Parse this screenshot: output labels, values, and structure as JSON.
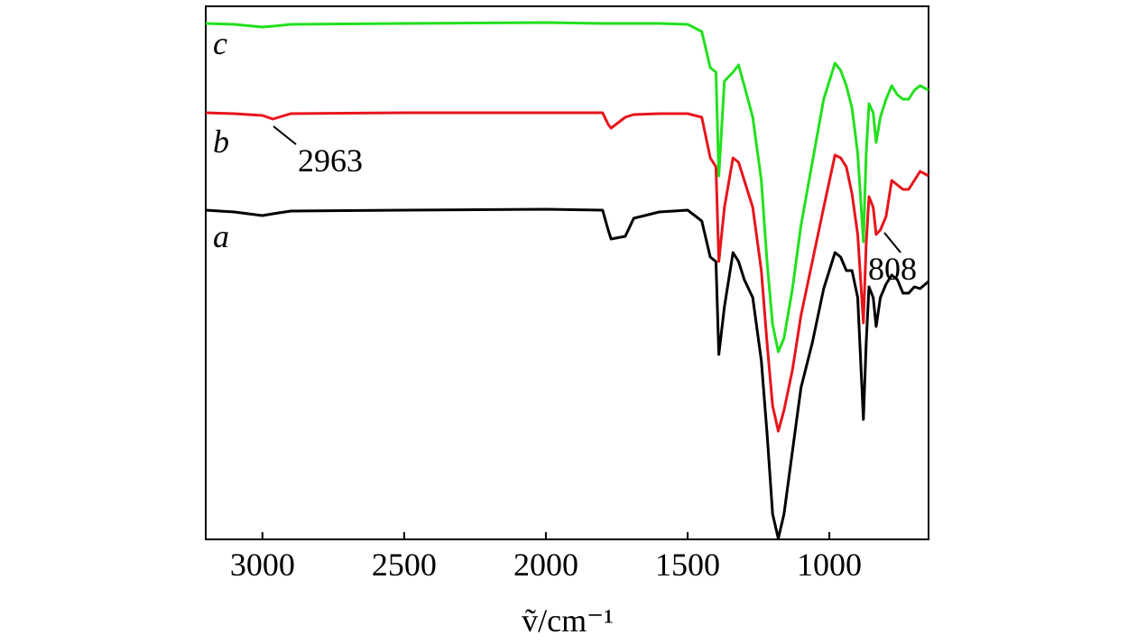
{
  "chart_data": {
    "type": "line",
    "x_label": "ṽ/cm⁻¹",
    "x": [
      3200,
      3100,
      3000,
      2963,
      2900,
      2500,
      2000,
      1800,
      1780,
      1770,
      1720,
      1690,
      1600,
      1500,
      1450,
      1420,
      1400,
      1390,
      1370,
      1340,
      1320,
      1300,
      1270,
      1240,
      1220,
      1200,
      1180,
      1160,
      1130,
      1100,
      1060,
      1020,
      980,
      960,
      940,
      920,
      900,
      880,
      870,
      860,
      845,
      835,
      820,
      800,
      780,
      760,
      740,
      720,
      700,
      680,
      650
    ],
    "series": [
      {
        "name": "a",
        "color": "#000000",
        "values": [
          365,
          363,
          359,
          361,
          364,
          365,
          366,
          365,
          343,
          333,
          336,
          356,
          363,
          365,
          353,
          313,
          308,
          205,
          258,
          318,
          308,
          288,
          268,
          198,
          118,
          28,
          1,
          28,
          98,
          168,
          218,
          278,
          318,
          313,
          298,
          298,
          268,
          133,
          218,
          280,
          268,
          236,
          268,
          283,
          293,
          288,
          273,
          273,
          280,
          278,
          286
        ]
      },
      {
        "name": "b",
        "color": "#e8141b",
        "values": [
          473,
          472,
          470,
          466,
          472,
          473,
          473,
          473,
          460,
          456,
          468,
          471,
          472,
          472,
          468,
          423,
          413,
          308,
          368,
          423,
          418,
          398,
          368,
          298,
          218,
          148,
          120,
          143,
          188,
          248,
          308,
          368,
          426,
          423,
          413,
          383,
          338,
          240,
          328,
          380,
          368,
          338,
          343,
          358,
          398,
          393,
          388,
          388,
          398,
          408,
          403
        ]
      },
      {
        "name": "c",
        "color": "#22e01e",
        "values": [
          572,
          571,
          568,
          569,
          571,
          572,
          573,
          572,
          572,
          572,
          572,
          572,
          572,
          571,
          563,
          523,
          518,
          403,
          508,
          518,
          526,
          503,
          468,
          398,
          308,
          238,
          208,
          223,
          278,
          348,
          418,
          488,
          528,
          520,
          503,
          478,
          428,
          330,
          428,
          483,
          473,
          440,
          468,
          488,
          503,
          493,
          488,
          488,
          498,
          503,
          498
        ]
      }
    ],
    "annotations": [
      "2963",
      "808"
    ],
    "xlim": [
      3200,
      650
    ],
    "ylim": [
      0,
      591
    ],
    "xticks": [
      3000,
      2500,
      2000,
      1500,
      1000
    ]
  }
}
